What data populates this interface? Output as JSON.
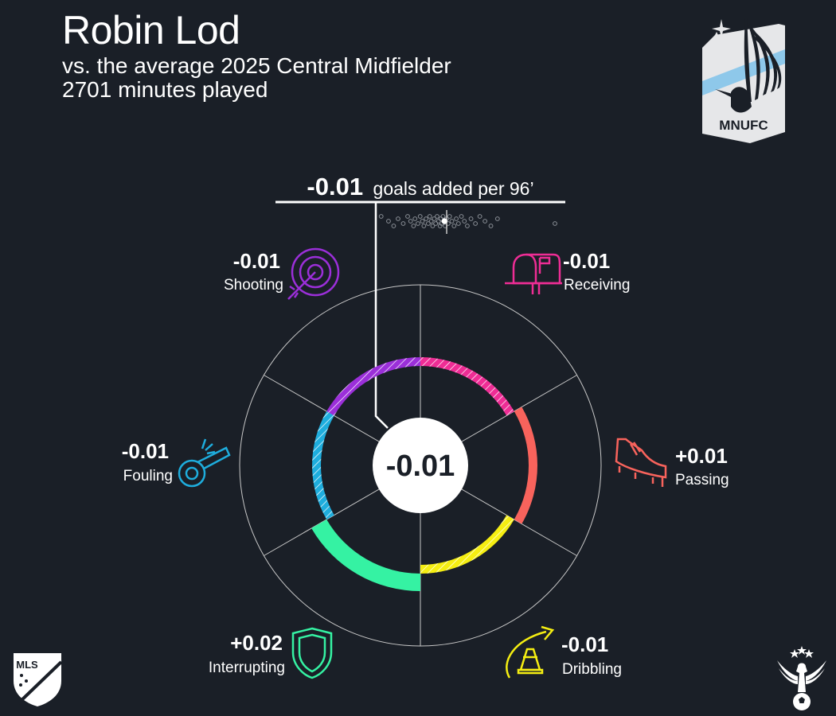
{
  "header": {
    "player_name": "Robin Lod",
    "subtitle": "vs. the average 2025 Central Midfielder",
    "minutes": "2701 minutes played"
  },
  "logos": {
    "team": "MNUFC",
    "league": "MLS",
    "brand_icon": "eagle-soccer-ball-icon"
  },
  "chart_data": {
    "type": "radial",
    "total": {
      "value_label": "-0.01",
      "unit_label": "goals added per 96’",
      "center_label": "-0.01"
    },
    "distribution": {
      "player_value": 0.0,
      "average": 0.03,
      "others": [
        -0.86,
        -0.76,
        -0.69,
        -0.63,
        -0.56,
        -0.5,
        -0.46,
        -0.42,
        -0.4,
        -0.36,
        -0.33,
        -0.3,
        -0.28,
        -0.25,
        -0.22,
        -0.2,
        -0.18,
        -0.16,
        -0.14,
        -0.12,
        -0.1,
        -0.08,
        -0.06,
        -0.05,
        -0.04,
        -0.02,
        -0.01,
        0.01,
        0.03,
        0.05,
        0.07,
        0.1,
        0.13,
        0.16,
        0.19,
        0.23,
        0.27,
        0.31,
        0.36,
        0.42,
        0.48,
        0.55,
        0.63,
        0.72,
        1.5
      ]
    },
    "categories": [
      {
        "name": "Receiving",
        "label": "-0.01",
        "value": -0.01,
        "color": "#ee2d95",
        "icon": "mailbox-icon"
      },
      {
        "name": "Passing",
        "label": "+0.01",
        "value": 0.01,
        "color": "#f8635c",
        "icon": "cleat-icon"
      },
      {
        "name": "Dribbling",
        "label": "-0.01",
        "value": -0.01,
        "color": "#f5ee12",
        "icon": "cone-icon"
      },
      {
        "name": "Interrupting",
        "label": "+0.02",
        "value": 0.02,
        "color": "#35f2a3",
        "icon": "shield-icon"
      },
      {
        "name": "Fouling",
        "label": "-0.01",
        "value": -0.01,
        "color": "#1eaddd",
        "icon": "whistle-icon"
      },
      {
        "name": "Shooting",
        "label": "-0.01",
        "value": -0.01,
        "color": "#9b2fd9",
        "icon": "target-icon"
      }
    ],
    "grid": true
  }
}
